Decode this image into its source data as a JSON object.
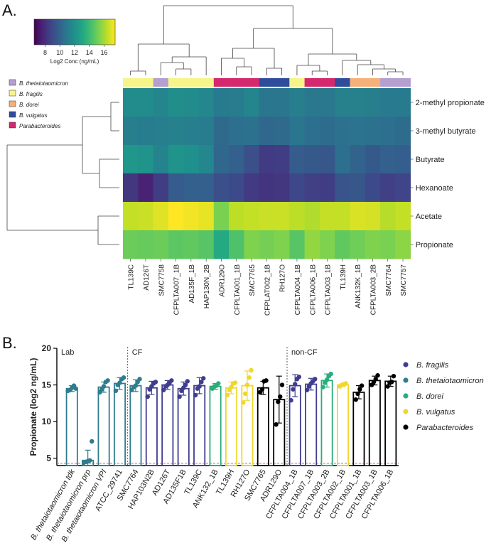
{
  "panel_labels": {
    "a": "A.",
    "b": "B."
  },
  "chart_data": [
    {
      "type": "heatmap",
      "title": "",
      "colorbar": {
        "label": "Log2 Conc (ng/mL)",
        "ticks": [
          "8",
          "10",
          "12",
          "14",
          "16"
        ],
        "range": [
          6.5,
          17.5
        ]
      },
      "legend": [
        {
          "name": "B. thetaiotaomicron",
          "color": "#b49fd0"
        },
        {
          "name": "B. fragilis",
          "color": "#f7f58a"
        },
        {
          "name": "B. dorei",
          "color": "#f6b07a"
        },
        {
          "name": "B. vulgatus",
          "color": "#2f4d9b"
        },
        {
          "name": "Parabacteroides",
          "color": "#d6286e"
        }
      ],
      "columns": [
        "TL139C",
        "AD126T",
        "SMC7758",
        "CFPLTA007_1B",
        "AD135F_1B",
        "HAP130N_2B",
        "ADR129O",
        "CFPLTA001_1B",
        "SMC7765",
        "CFPLAT002_1B",
        "RH127O",
        "CFPLTA004_1B",
        "CFPLTA006_1B",
        "CFPLTA003_1B",
        "TL139H",
        "ANK132K_1B",
        "CFPLTA003_2B",
        "SMC7764",
        "SMC7757"
      ],
      "column_groups": [
        "B. fragilis",
        "B. fragilis",
        "B. thetaiotaomicron",
        "B. fragilis",
        "B. fragilis",
        "B. fragilis",
        "Parabacteroides",
        "Parabacteroides",
        "Parabacteroides",
        "B. vulgatus",
        "B. vulgatus",
        "B. fragilis",
        "Parabacteroides",
        "Parabacteroides",
        "B. vulgatus",
        "B. dorei",
        "B. dorei",
        "B. thetaiotaomicron",
        "B. thetaiotaomicron"
      ],
      "rows": [
        "2-methyl propionate",
        "3-methyl butyrate",
        "Butyrate",
        "Hexanoate",
        "Acetate",
        "Propionate"
      ],
      "values": [
        [
          11.8,
          11.8,
          11.5,
          11.9,
          11.8,
          11.6,
          11.0,
          11.1,
          11.5,
          10.8,
          10.8,
          11.2,
          10.9,
          10.9,
          11.3,
          11.3,
          11.2,
          11.0,
          11.0
        ],
        [
          11.2,
          11.1,
          11.2,
          11.3,
          11.2,
          11.1,
          10.3,
          10.5,
          10.6,
          10.2,
          10.3,
          10.8,
          10.5,
          10.4,
          10.6,
          10.7,
          10.6,
          10.5,
          10.4
        ],
        [
          12.3,
          12.2,
          11.4,
          12.2,
          12.0,
          11.6,
          10.2,
          9.9,
          9.2,
          8.4,
          8.5,
          9.7,
          9.6,
          9.5,
          10.5,
          10.0,
          9.6,
          9.9,
          9.8
        ],
        [
          8.3,
          7.6,
          8.5,
          9.7,
          9.9,
          9.9,
          9.2,
          9.0,
          8.4,
          8.2,
          8.3,
          8.9,
          8.6,
          8.5,
          9.4,
          9.5,
          9.0,
          8.6,
          8.8
        ],
        [
          16.5,
          16.6,
          17.0,
          17.6,
          17.3,
          17.1,
          15.3,
          16.4,
          16.5,
          16.6,
          16.6,
          16.4,
          16.2,
          16.5,
          16.5,
          16.9,
          16.8,
          16.3,
          16.5
        ],
        [
          15.0,
          14.9,
          15.0,
          14.7,
          14.8,
          14.6,
          13.2,
          14.4,
          15.4,
          15.2,
          15.4,
          14.6,
          15.7,
          15.4,
          14.8,
          15.1,
          15.4,
          15.3,
          15.6
        ]
      ]
    },
    {
      "type": "bar",
      "title": "",
      "xlabel": "",
      "ylabel": "Propionate (log2 ng/mL)",
      "ylim": [
        4,
        20
      ],
      "yticks": [
        "5",
        "10",
        "15",
        "20"
      ],
      "dashed_line": 4.3,
      "sections": [
        "Lab",
        "CF",
        "non-CF"
      ],
      "legend": [
        {
          "name": "B. fragilis",
          "color": "#3f3d8e"
        },
        {
          "name": "B. thetaiotaomicron",
          "color": "#2f7c8d"
        },
        {
          "name": "B. dorei",
          "color": "#27ae7a"
        },
        {
          "name": "B. vulgatus",
          "color": "#f0d82a"
        },
        {
          "name": "Parabacteroides",
          "color": "#000000"
        }
      ],
      "categories": [
        "B. thetaiotaomicron  tdk",
        "B. thetaiotaomicron  prp",
        "B. thetaiotaomicron VPI",
        "ATCC_29741",
        "SMC7764",
        "HAP103N2B",
        "AD126T",
        "AD135F1B",
        "TL139C",
        "ANK132_1B",
        "TL139H",
        "RH127O",
        "SMC7765",
        "ADR129O",
        "CFPLTA004_1B",
        "CFPLTA007_1B",
        "CFPLTA003_2B",
        "CFPLTA002_1B",
        "CFPLTA001_1B",
        "CFPLTA003_1B",
        "CFPLTA006_1B"
      ],
      "species": [
        "B. thetaiotaomicron",
        "B. thetaiotaomicron",
        "B. thetaiotaomicron",
        "B. thetaiotaomicron",
        "B. thetaiotaomicron",
        "B. fragilis",
        "B. fragilis",
        "B. fragilis",
        "B. fragilis",
        "B. dorei",
        "B. vulgatus",
        "B. vulgatus",
        "Parabacteroides",
        "Parabacteroides",
        "B. fragilis",
        "B. fragilis",
        "B. dorei",
        "B. vulgatus",
        "Parabacteroides",
        "Parabacteroides",
        "Parabacteroides"
      ],
      "values": [
        14.5,
        4.7,
        14.7,
        15.2,
        14.9,
        14.6,
        15.0,
        14.5,
        14.9,
        14.8,
        14.6,
        14.9,
        14.6,
        13.0,
        14.9,
        15.1,
        15.6,
        15.0,
        14.0,
        15.6,
        15.5
      ],
      "errors": [
        0.4,
        1.4,
        0.7,
        0.8,
        0.8,
        0.9,
        0.6,
        0.9,
        1.1,
        0.4,
        0.8,
        2.0,
        0.9,
        3.2,
        1.5,
        0.8,
        0.9,
        0.2,
        0.9,
        0.6,
        0.7
      ],
      "points": [
        [
          14.2,
          14.3,
          14.6,
          14.9,
          14.5
        ],
        [
          4.4,
          4.5,
          4.6,
          4.7,
          7.3
        ],
        [
          14.0,
          14.4,
          14.8,
          15.4,
          15.6
        ],
        [
          14.2,
          15.0,
          15.3,
          15.8,
          16.0
        ],
        [
          14.3,
          14.7,
          14.9,
          15.4,
          15.8
        ],
        [
          13.4,
          14.4,
          14.8,
          15.2,
          15.4
        ],
        [
          14.3,
          14.8,
          15.0,
          15.3,
          15.6
        ],
        [
          13.4,
          14.2,
          14.6,
          15.0,
          15.5
        ],
        [
          13.6,
          14.5,
          14.8,
          15.4,
          15.9
        ],
        [
          14.5,
          14.8,
          14.9,
          15.2
        ],
        [
          13.6,
          14.3,
          14.7,
          15.2,
          15.3
        ],
        [
          12.6,
          13.8,
          15.0,
          16.0,
          17.0
        ],
        [
          14.0,
          14.4,
          15.5,
          15.6
        ],
        [
          9.6,
          12.7,
          13.4,
          15.0
        ],
        [
          12.9,
          14.4,
          15.1,
          15.8,
          16.1
        ],
        [
          14.3,
          14.8,
          15.2,
          15.5,
          15.8
        ],
        [
          14.7,
          15.3,
          15.7,
          16.2,
          16.5
        ],
        [
          14.8,
          15.0,
          15.1,
          15.2
        ],
        [
          13.0,
          13.8,
          14.4,
          14.9
        ],
        [
          15.0,
          15.4,
          15.8,
          16.3
        ],
        [
          14.8,
          15.3,
          15.4,
          16.2
        ]
      ]
    }
  ]
}
